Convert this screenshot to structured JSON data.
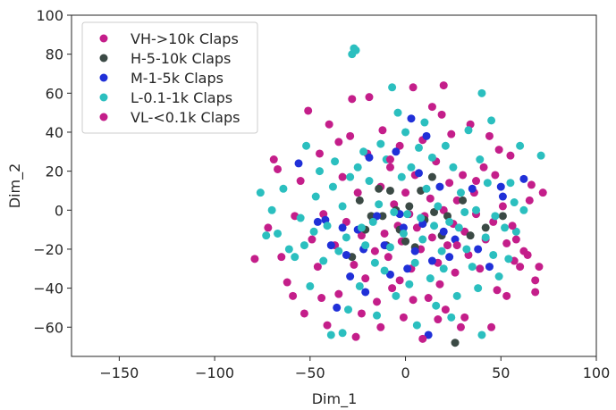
{
  "chart_data": {
    "type": "scatter",
    "title": "",
    "xlabel": "Dim_1",
    "ylabel": "Dim_2",
    "xlim": [
      -175,
      100
    ],
    "ylim": [
      -75,
      100
    ],
    "x_ticks": [
      -150,
      -100,
      -50,
      0,
      50,
      100
    ],
    "y_ticks": [
      -60,
      -40,
      -20,
      0,
      20,
      40,
      60,
      80,
      100
    ],
    "x_tick_labels": [
      "−150",
      "−100",
      "−50",
      "0",
      "50",
      "100"
    ],
    "y_tick_labels": [
      "−60",
      "−40",
      "−20",
      "0",
      "20",
      "40",
      "60",
      "80",
      "100"
    ],
    "grid": false,
    "legend_position": "top-left",
    "series": [
      {
        "name": "VH->10k Claps",
        "color": "#c41e8a",
        "points": [
          [
            -79,
            -25
          ],
          [
            -72,
            -9
          ],
          [
            -69,
            26
          ],
          [
            -65,
            -24
          ],
          [
            -62,
            -37
          ],
          [
            -58,
            -3
          ],
          [
            -55,
            15
          ],
          [
            -51,
            51
          ],
          [
            -49,
            -15
          ],
          [
            -46,
            -29
          ],
          [
            -45,
            29
          ],
          [
            -43,
            -2
          ],
          [
            -40,
            44
          ],
          [
            -37,
            -18
          ],
          [
            -35,
            -43
          ],
          [
            -33,
            17
          ],
          [
            -31,
            -6
          ],
          [
            -29,
            38
          ],
          [
            -27,
            -28
          ],
          [
            -26,
            -65
          ],
          [
            -25,
            9
          ],
          [
            -23,
            -13
          ],
          [
            -21,
            -35
          ],
          [
            -20,
            29
          ],
          [
            -19,
            58
          ],
          [
            -17,
            -5
          ],
          [
            -16,
            -21
          ],
          [
            -15,
            -47
          ],
          [
            -13,
            12
          ],
          [
            -12,
            41
          ],
          [
            -11,
            -12
          ],
          [
            -9,
            -24
          ],
          [
            -8,
            22
          ],
          [
            -7,
            -40
          ],
          [
            -6,
            3
          ],
          [
            -4,
            -8
          ],
          [
            -3,
            33
          ],
          [
            -2,
            -16
          ],
          [
            -1,
            -55
          ],
          [
            0,
            9
          ],
          [
            2,
            -2
          ],
          [
            3,
            -30
          ],
          [
            4,
            63
          ],
          [
            5,
            18
          ],
          [
            6,
            -9
          ],
          [
            8,
            -20
          ],
          [
            9,
            36
          ],
          [
            10,
            -3
          ],
          [
            12,
            -45
          ],
          [
            13,
            6
          ],
          [
            14,
            -14
          ],
          [
            16,
            25
          ],
          [
            17,
            -27
          ],
          [
            18,
            -38
          ],
          [
            19,
            49
          ],
          [
            20,
            0
          ],
          [
            22,
            -18
          ],
          [
            23,
            14
          ],
          [
            25,
            -7
          ],
          [
            26,
            -32
          ],
          [
            27,
            5
          ],
          [
            29,
            -60
          ],
          [
            30,
            18
          ],
          [
            31,
            -11
          ],
          [
            33,
            -23
          ],
          [
            34,
            44
          ],
          [
            36,
            9
          ],
          [
            37,
            -2
          ],
          [
            39,
            -30
          ],
          [
            41,
            22
          ],
          [
            42,
            -15
          ],
          [
            44,
            38
          ],
          [
            46,
            -6
          ],
          [
            48,
            -41
          ],
          [
            49,
            31
          ],
          [
            51,
            2
          ],
          [
            53,
            -17
          ],
          [
            55,
            28
          ],
          [
            57,
            -26
          ],
          [
            58,
            -15
          ],
          [
            62,
            -21
          ],
          [
            65,
            5
          ],
          [
            68,
            -36
          ],
          [
            70,
            -29
          ],
          [
            72,
            9
          ],
          [
            20,
            64
          ]
        ]
      },
      {
        "name": "H-5-10k Claps",
        "color": "#3b4a45",
        "points": [
          [
            -28,
            -24
          ],
          [
            -24,
            5
          ],
          [
            -21,
            -10
          ],
          [
            -18,
            -3
          ],
          [
            -14,
            11
          ],
          [
            -12,
            -3
          ],
          [
            -10,
            -18
          ],
          [
            -8,
            10
          ],
          [
            -5,
            0
          ],
          [
            -3,
            -10
          ],
          [
            0,
            -16
          ],
          [
            2,
            2
          ],
          [
            5,
            -19
          ],
          [
            8,
            10
          ],
          [
            10,
            -5
          ],
          [
            14,
            17
          ],
          [
            15,
            -1
          ],
          [
            19,
            -13
          ],
          [
            22,
            -3
          ],
          [
            26,
            -68
          ],
          [
            30,
            5
          ],
          [
            34,
            -13
          ],
          [
            42,
            -9
          ],
          [
            51,
            -3
          ]
        ]
      },
      {
        "name": "M-1-5k Claps",
        "color": "#2030d8",
        "points": [
          [
            -56,
            24
          ],
          [
            -46,
            -6
          ],
          [
            -42,
            -5
          ],
          [
            -39,
            -18
          ],
          [
            -36,
            -50
          ],
          [
            -33,
            -9
          ],
          [
            -31,
            -23
          ],
          [
            -29,
            -34
          ],
          [
            -25,
            -10
          ],
          [
            -22,
            -20
          ],
          [
            -21,
            -42
          ],
          [
            -19,
            27
          ],
          [
            -15,
            -3
          ],
          [
            -11,
            -18
          ],
          [
            -8,
            -33
          ],
          [
            -5,
            30
          ],
          [
            -3,
            -2
          ],
          [
            -1,
            -9
          ],
          [
            1,
            -30
          ],
          [
            3,
            47
          ],
          [
            5,
            -21
          ],
          [
            7,
            19
          ],
          [
            9,
            -7
          ],
          [
            11,
            38
          ],
          [
            12,
            -64
          ],
          [
            14,
            -26
          ],
          [
            18,
            12
          ],
          [
            20,
            -11
          ],
          [
            23,
            -24
          ],
          [
            26,
            -15
          ],
          [
            35,
            11
          ],
          [
            38,
            -20
          ],
          [
            44,
            -29
          ],
          [
            50,
            12
          ],
          [
            51,
            7
          ],
          [
            62,
            16
          ]
        ]
      },
      {
        "name": "L-0.1-1k Claps",
        "color": "#2bbfbf",
        "points": [
          [
            -76,
            9
          ],
          [
            -73,
            -13
          ],
          [
            -70,
            0
          ],
          [
            -67,
            -12
          ],
          [
            -64,
            11
          ],
          [
            -61,
            -20
          ],
          [
            -58,
            -24
          ],
          [
            -55,
            -4
          ],
          [
            -53,
            -18
          ],
          [
            -52,
            33
          ],
          [
            -50,
            -39
          ],
          [
            -48,
            -11
          ],
          [
            -47,
            7
          ],
          [
            -45,
            20
          ],
          [
            -43,
            -26
          ],
          [
            -41,
            -8
          ],
          [
            -39,
            -64
          ],
          [
            -38,
            12
          ],
          [
            -37,
            25
          ],
          [
            -35,
            -21
          ],
          [
            -33,
            2
          ],
          [
            -31,
            -14
          ],
          [
            -30,
            -51
          ],
          [
            -29,
            17
          ],
          [
            -28,
            80
          ],
          [
            -27,
            83
          ],
          [
            -26,
            82
          ],
          [
            -25,
            22
          ],
          [
            -24,
            -39
          ],
          [
            -23,
            -9
          ],
          [
            -22,
            30
          ],
          [
            -21,
            -18
          ],
          [
            -19,
            15
          ],
          [
            -17,
            -6
          ],
          [
            -16,
            -27
          ],
          [
            -15,
            -54
          ],
          [
            -14,
            3
          ],
          [
            -13,
            34
          ],
          [
            -11,
            -31
          ],
          [
            -10,
            26
          ],
          [
            -8,
            -19
          ],
          [
            -7,
            63
          ],
          [
            -6,
            -1
          ],
          [
            -5,
            -44
          ],
          [
            -4,
            50
          ],
          [
            -2,
            17
          ],
          [
            -1,
            -12
          ],
          [
            0,
            40
          ],
          [
            1,
            -2
          ],
          [
            2,
            -38
          ],
          [
            3,
            22
          ],
          [
            5,
            -27
          ],
          [
            6,
            -59
          ],
          [
            7,
            32
          ],
          [
            8,
            -4
          ],
          [
            9,
            -15
          ],
          [
            10,
            45
          ],
          [
            11,
            11
          ],
          [
            13,
            -35
          ],
          [
            14,
            27
          ],
          [
            15,
            -8
          ],
          [
            16,
            -49
          ],
          [
            17,
            2
          ],
          [
            19,
            -21
          ],
          [
            20,
            -30
          ],
          [
            21,
            33
          ],
          [
            23,
            -6
          ],
          [
            24,
            -55
          ],
          [
            25,
            22
          ],
          [
            27,
            -44
          ],
          [
            28,
            -9
          ],
          [
            29,
            9
          ],
          [
            31,
            -1
          ],
          [
            32,
            -20
          ],
          [
            33,
            41
          ],
          [
            35,
            -29
          ],
          [
            37,
            0
          ],
          [
            38,
            -40
          ],
          [
            39,
            26
          ],
          [
            40,
            60
          ],
          [
            42,
            -14
          ],
          [
            43,
            14
          ],
          [
            45,
            46
          ],
          [
            46,
            -23
          ],
          [
            47,
            -3
          ],
          [
            49,
            -34
          ],
          [
            52,
            -9
          ],
          [
            54,
            -25
          ],
          [
            55,
            14
          ],
          [
            57,
            4
          ],
          [
            58,
            -11
          ],
          [
            60,
            33
          ],
          [
            62,
            0
          ],
          [
            71,
            28
          ],
          [
            40,
            -64
          ],
          [
            -33,
            -63
          ]
        ]
      },
      {
        "name": "VL-<0.1k Claps",
        "color": "#c41e8a",
        "points": [
          [
            -67,
            21
          ],
          [
            -59,
            -44
          ],
          [
            -53,
            -53
          ],
          [
            -44,
            -45
          ],
          [
            -41,
            -59
          ],
          [
            -35,
            35
          ],
          [
            -28,
            57
          ],
          [
            -23,
            -53
          ],
          [
            -13,
            -60
          ],
          [
            -8,
            26
          ],
          [
            -3,
            -36
          ],
          [
            4,
            -46
          ],
          [
            9,
            -66
          ],
          [
            14,
            53
          ],
          [
            17,
            -56
          ],
          [
            21,
            -51
          ],
          [
            24,
            39
          ],
          [
            27,
            -18
          ],
          [
            31,
            -55
          ],
          [
            37,
            15
          ],
          [
            45,
            -60
          ],
          [
            47,
            18
          ],
          [
            53,
            -44
          ],
          [
            56,
            -8
          ],
          [
            60,
            -29
          ],
          [
            64,
            -23
          ],
          [
            66,
            13
          ],
          [
            68,
            -42
          ]
        ]
      }
    ]
  }
}
